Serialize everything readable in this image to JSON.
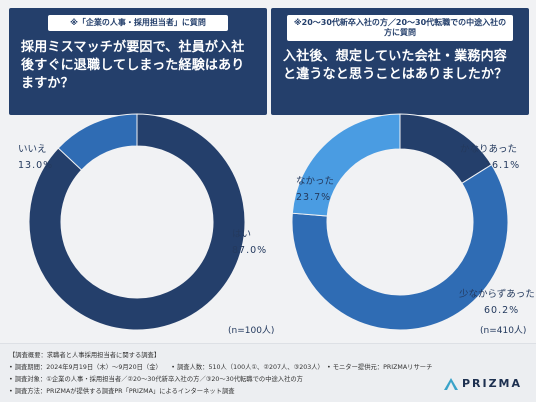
{
  "header": {
    "left_tag": "※「企業の人事・採用担当者」に質問",
    "left_question": "採用ミスマッチが要因で、社員が入社後すぐに退職してしまった経験はありますか？",
    "right_tag": "※20～30代新卒入社の方／20～30代転職での中途入社の方に質問",
    "right_question": "入社後、想定していた会社・業務内容と違うなと思うことはありましたか？"
  },
  "chart_data": [
    {
      "type": "pie",
      "donut": true,
      "sample": "(n=100人)",
      "slices": [
        {
          "label": "はい",
          "value": 87.0,
          "display": "87.0%",
          "color": "#243f6b"
        },
        {
          "label": "いいえ",
          "value": 13.0,
          "display": "13.0%",
          "color": "#2f6cb4"
        }
      ]
    },
    {
      "type": "pie",
      "donut": true,
      "sample": "(n=410人)",
      "slices": [
        {
          "label": "かなりあった",
          "value": 16.1,
          "display": "16.1%",
          "color": "#243f6b"
        },
        {
          "label": "少なからずあった",
          "value": 60.2,
          "display": "60.2%",
          "color": "#2f6cb4"
        },
        {
          "label": "なかった",
          "value": 23.7,
          "display": "23.7%",
          "color": "#4a9ce2"
        }
      ]
    }
  ],
  "footer": {
    "line1": "【調査概要：求職者と人事採用担当者に関する調査】",
    "line2": "• 調査期間：2024年9月19日（木）～9月20日（金）　　• 調査人数：510人（100人①、②207人、③203人）　• モニター提供元：PRIZMAリサーチ",
    "line3": "• 調査対象：①企業の人事・採用担当者／②20～30代新卒入社の方／③20～30代転職での中途入社の方",
    "line4": "• 調査方法：PRIZMAが提供する調査PR「PRIZMA」によるインターネット調査",
    "brand": "PRIZMA"
  }
}
